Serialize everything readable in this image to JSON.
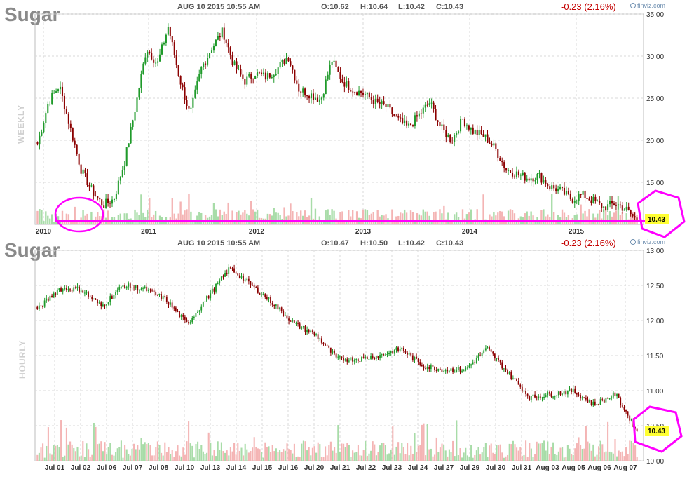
{
  "panels": [
    {
      "id": "weekly",
      "title": "Sugar",
      "period_label": "WEEKLY",
      "datetime": "AUG 10 2015 10:55 AM",
      "ohlc": {
        "open": "O:10.62",
        "high": "H:10.64",
        "low": "L:10.42",
        "close": "C:10.43"
      },
      "change": "-0.23 (2.16%)",
      "brand": "finviz.com",
      "last_price": "10.43"
    },
    {
      "id": "hourly",
      "title": "Sugar",
      "period_label": "HOURLY",
      "datetime": "AUG 10 2015 10:55 AM",
      "ohlc": {
        "open": "O:10.47",
        "high": "H:10.50",
        "low": "L:10.42",
        "close": "C:10.43"
      },
      "change": "-0.23 (2.16%)",
      "brand": "finviz.com",
      "last_price": "10.43"
    }
  ],
  "colors": {
    "up": "#1f9a2a",
    "down": "#8b0000",
    "vol_up": "#a8dca8",
    "vol_down": "#f4b4b4",
    "grid": "#d9d9d9",
    "annotation": "#ff00ff",
    "price_tag": "#ffff33"
  },
  "chart_data": [
    {
      "type": "candlestick",
      "title": "Sugar",
      "period": "WEEKLY",
      "x_tick_labels": [
        "2010",
        "2011",
        "2012",
        "2013",
        "2014",
        "2015"
      ],
      "y_tick_labels": [
        "15.00",
        "20.00",
        "25.00",
        "30.00",
        "35.00"
      ],
      "ylim": [
        10.0,
        35.0
      ],
      "grid": true,
      "series_anchors": {
        "x": [
          "2009-12",
          "2010-01",
          "2010-02",
          "2010-03",
          "2010-04",
          "2010-05",
          "2010-06",
          "2010-07",
          "2010-09",
          "2010-10",
          "2010-11",
          "2010-12",
          "2011-02",
          "2011-03",
          "2011-04",
          "2011-05",
          "2011-06",
          "2011-07",
          "2011-08",
          "2011-09",
          "2011-10",
          "2011-11",
          "2011-12",
          "2012-02",
          "2012-03",
          "2012-04",
          "2012-05",
          "2012-06",
          "2012-07",
          "2012-08",
          "2012-09",
          "2012-10",
          "2012-12",
          "2013-02",
          "2013-04",
          "2013-06",
          "2013-08",
          "2013-10",
          "2013-11",
          "2014-01",
          "2014-02",
          "2014-03",
          "2014-05",
          "2014-06",
          "2014-07",
          "2014-09",
          "2014-10",
          "2014-12",
          "2015-01",
          "2015-02",
          "2015-03",
          "2015-04",
          "2015-05",
          "2015-06",
          "2015-07",
          "2015-08"
        ],
        "close": [
          19.5,
          24.5,
          26.5,
          21.5,
          16.5,
          14.0,
          12.3,
          13.0,
          17.5,
          24.0,
          31.0,
          29.0,
          33.5,
          27.5,
          23.0,
          28.5,
          31.0,
          33.0,
          29.0,
          27.0,
          28.0,
          27.5,
          28.5,
          30.0,
          26.0,
          25.5,
          24.8,
          29.5,
          27.0,
          26.0,
          25.5,
          24.5,
          24.0,
          22.5,
          21.5,
          23.0,
          24.5,
          21.5,
          20.0,
          22.5,
          21.0,
          20.5,
          19.0,
          16.5,
          16.0,
          15.5,
          15.8,
          14.5,
          14.0,
          13.0,
          13.5,
          12.8,
          12.0,
          12.5,
          11.8,
          10.43
        ]
      },
      "volume_note": "volume bars along bottom of price panel",
      "annotations": [
        "horizontal support line near 10.4",
        "circle around 2010 low",
        "hexagon around last price"
      ]
    },
    {
      "type": "candlestick",
      "title": "Sugar",
      "period": "HOURLY",
      "x_tick_labels": [
        "Jul 01",
        "Jul 02",
        "Jul 06",
        "Jul 07",
        "Jul 08",
        "Jul 10",
        "Jul 13",
        "Jul 14",
        "Jul 15",
        "Jul 16",
        "Jul 20",
        "Jul 21",
        "Jul 22",
        "Jul 23",
        "Jul 24",
        "Jul 27",
        "Jul 29",
        "Jul 30",
        "Jul 31",
        "Aug 03",
        "Aug 05",
        "Aug 06",
        "Aug 07"
      ],
      "y_tick_labels": [
        "10.00",
        "10.50",
        "11.00",
        "11.50",
        "12.00",
        "12.50",
        "13.00"
      ],
      "ylim": [
        10.0,
        13.0
      ],
      "grid": true,
      "series_anchors": {
        "x": [
          "Jun 30",
          "Jul 01",
          "Jul 02",
          "Jul 06",
          "Jul 07",
          "Jul 08",
          "Jul 09",
          "Jul 10",
          "Jul 13",
          "Jul 14",
          "Jul 15",
          "Jul 16",
          "Jul 17",
          "Jul 20",
          "Jul 21",
          "Jul 22",
          "Jul 23",
          "Jul 24",
          "Jul 27",
          "Jul 28",
          "Jul 29",
          "Jul 30",
          "Jul 31",
          "Aug 03",
          "Aug 04",
          "Aug 05",
          "Aug 06",
          "Aug 07",
          "Aug 10"
        ],
        "close": [
          12.15,
          12.45,
          12.45,
          12.2,
          12.5,
          12.45,
          12.3,
          11.95,
          12.35,
          12.75,
          12.5,
          12.25,
          11.95,
          11.8,
          11.45,
          11.45,
          11.5,
          11.6,
          11.35,
          11.3,
          11.3,
          11.6,
          11.25,
          10.9,
          10.95,
          11.0,
          10.8,
          10.95,
          10.43
        ]
      },
      "volume_note": "volume bars along bottom of price panel",
      "annotations": [
        "hexagon around last price"
      ]
    }
  ]
}
